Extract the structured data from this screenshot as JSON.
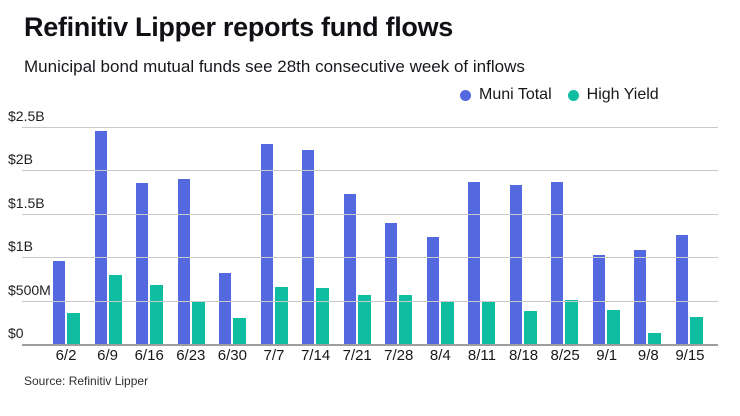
{
  "header": {
    "title": "Refinitiv Lipper reports fund flows",
    "subtitle": "Municipal bond mutual funds see 28th consecutive week of inflows"
  },
  "legend": {
    "items": [
      {
        "label": "Muni Total",
        "color": "#5468e0"
      },
      {
        "label": "High Yield",
        "color": "#0fbda1"
      }
    ]
  },
  "source": "Source: Refinitiv Lipper",
  "colors": {
    "muni_total": "#5468e0",
    "high_yield": "#0fbda1",
    "gridline": "#c9c9c9",
    "axis_line": "#9e9e9e",
    "background": "#ffffff",
    "text": "#101114"
  },
  "chart_data": {
    "type": "bar",
    "title": "Refinitiv Lipper reports fund flows",
    "subtitle": "Municipal bond mutual funds see 28th consecutive week of inflows",
    "unit": "USD billions",
    "categories": [
      "6/2",
      "6/9",
      "6/16",
      "6/23",
      "6/30",
      "7/7",
      "7/14",
      "7/21",
      "7/28",
      "8/4",
      "8/11",
      "8/18",
      "8/25",
      "9/1",
      "9/8",
      "9/15"
    ],
    "series": [
      {
        "name": "Muni Total",
        "color": "#5468e0",
        "values": [
          0.96,
          2.45,
          1.85,
          1.9,
          0.82,
          2.3,
          2.24,
          1.73,
          1.39,
          1.23,
          1.87,
          1.83,
          1.87,
          1.03,
          1.08,
          1.26
        ]
      },
      {
        "name": "High Yield",
        "color": "#0fbda1",
        "values": [
          0.36,
          0.8,
          0.68,
          0.5,
          0.3,
          0.66,
          0.64,
          0.57,
          0.56,
          0.49,
          0.49,
          0.38,
          0.51,
          0.39,
          0.13,
          0.31
        ]
      }
    ],
    "xlabel": "",
    "ylabel": "",
    "ylim": [
      0,
      2.5
    ],
    "y_ticks": [
      "$2.5B",
      "$2B",
      "$1.5B",
      "$1B",
      "$500M",
      "$0"
    ],
    "grid": "horizontal",
    "legend_position": "top-right"
  }
}
